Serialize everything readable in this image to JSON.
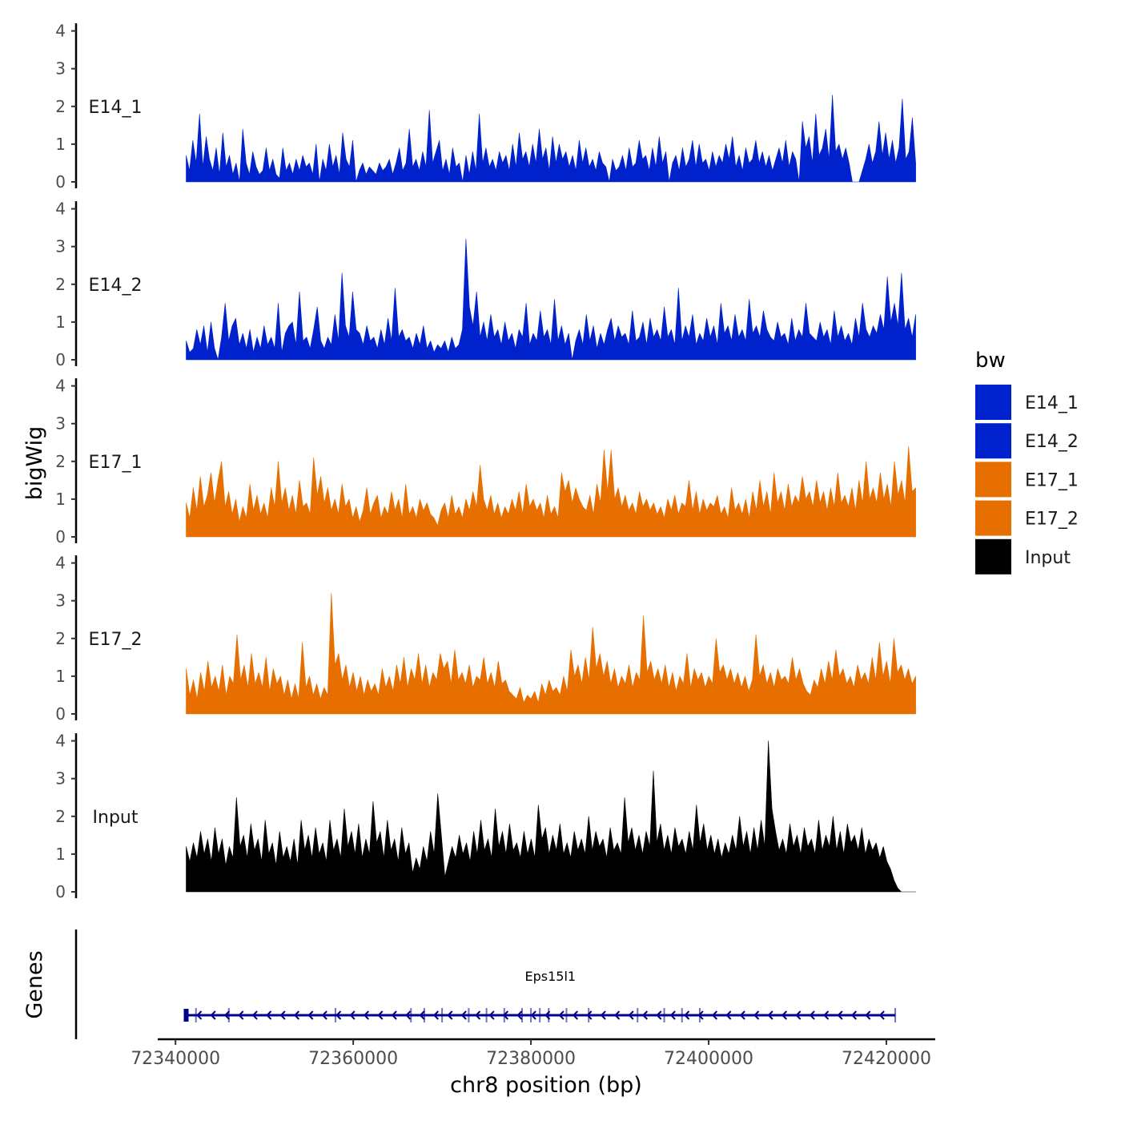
{
  "chart_data": {
    "type": "area",
    "chromosome": "chr8",
    "x_axis": {
      "label": "chr8 position (bp)",
      "range": [
        72338000,
        72425500
      ],
      "ticks": [
        72340000,
        72360000,
        72380000,
        72400000,
        72420000
      ],
      "tick_labels": [
        "72340000",
        "72360000",
        "72380000",
        "72400000",
        "72420000"
      ]
    },
    "y_axis": {
      "label": "bigWig",
      "range": [
        0,
        4.2
      ],
      "ticks": [
        0,
        1,
        2,
        3,
        4
      ],
      "tick_labels": [
        "0",
        "1",
        "2",
        "3",
        "4"
      ]
    },
    "data_start": 72341200,
    "data_end": 72423300,
    "tracks": [
      {
        "name": "E14_1",
        "label": "E14_1",
        "color": "#0022CC",
        "baseline": 0.07,
        "values": [
          0.7,
          0.3,
          1.1,
          0.5,
          1.8,
          0.4,
          1.2,
          0.6,
          0.3,
          0.9,
          0.2,
          1.3,
          0.4,
          0.7,
          0.2,
          0.5,
          0.0,
          1.4,
          0.5,
          0.2,
          0.8,
          0.4,
          0.2,
          0.3,
          0.9,
          0.3,
          0.6,
          0.2,
          0.1,
          0.9,
          0.3,
          0.5,
          0.2,
          0.6,
          0.3,
          0.7,
          0.4,
          0.5,
          0.2,
          1.0,
          0.0,
          0.6,
          0.3,
          1.0,
          0.4,
          0.7,
          0.2,
          1.3,
          0.6,
          0.4,
          1.1,
          0.0,
          0.3,
          0.5,
          0.2,
          0.4,
          0.3,
          0.2,
          0.5,
          0.3,
          0.4,
          0.6,
          0.2,
          0.5,
          0.9,
          0.3,
          0.5,
          1.4,
          0.4,
          0.6,
          0.3,
          0.8,
          0.4,
          1.9,
          0.5,
          0.8,
          1.1,
          0.3,
          0.6,
          0.2,
          0.9,
          0.4,
          0.5,
          0.0,
          0.7,
          0.2,
          0.8,
          0.3,
          1.8,
          0.5,
          0.9,
          0.4,
          0.6,
          0.3,
          0.8,
          0.5,
          0.7,
          0.3,
          1.0,
          0.4,
          1.3,
          0.6,
          0.8,
          0.4,
          1.0,
          0.5,
          1.4,
          0.6,
          0.9,
          0.3,
          1.2,
          0.5,
          1.0,
          0.6,
          0.8,
          0.4,
          0.7,
          0.3,
          1.1,
          0.5,
          0.9,
          0.4,
          0.6,
          0.3,
          0.8,
          0.5,
          0.4,
          0.0,
          0.6,
          0.3,
          0.4,
          0.7,
          0.3,
          0.9,
          0.4,
          0.5,
          1.1,
          0.6,
          0.7,
          0.3,
          0.9,
          0.4,
          1.2,
          0.5,
          0.8,
          0.0,
          0.5,
          0.7,
          0.3,
          0.9,
          0.4,
          0.6,
          1.1,
          0.4,
          1.0,
          0.5,
          0.6,
          0.3,
          0.8,
          0.4,
          0.7,
          0.5,
          1.0,
          0.6,
          1.2,
          0.4,
          0.7,
          0.3,
          0.9,
          0.5,
          0.6,
          1.1,
          0.5,
          0.8,
          0.4,
          0.7,
          0.3,
          0.6,
          0.9,
          0.5,
          1.1,
          0.4,
          0.8,
          0.6,
          0.0,
          1.6,
          0.9,
          1.2,
          0.5,
          1.8,
          0.7,
          0.9,
          1.4,
          0.6,
          2.3,
          0.8,
          1.0,
          0.6,
          0.9,
          0.5,
          0.0,
          0.0,
          0.0,
          0.3,
          0.6,
          1.0,
          0.5,
          0.8,
          1.6,
          0.7,
          1.3,
          0.6,
          1.1,
          0.5,
          0.9,
          2.2,
          0.6,
          0.8,
          1.7,
          0.5
        ]
      },
      {
        "name": "E14_2",
        "label": "E14_2",
        "color": "#0022CC",
        "baseline": 0.07,
        "values": [
          0.5,
          0.2,
          0.3,
          0.8,
          0.4,
          0.9,
          0.2,
          1.0,
          0.3,
          0.0,
          0.6,
          1.5,
          0.5,
          0.9,
          1.1,
          0.4,
          0.7,
          0.3,
          0.8,
          0.2,
          0.6,
          0.3,
          0.9,
          0.4,
          0.6,
          0.3,
          1.5,
          0.2,
          0.7,
          0.9,
          1.0,
          0.4,
          1.8,
          0.5,
          0.6,
          0.3,
          0.8,
          1.4,
          0.5,
          0.3,
          0.6,
          0.4,
          1.2,
          0.5,
          2.3,
          0.9,
          0.6,
          1.8,
          0.8,
          0.7,
          0.4,
          0.9,
          0.5,
          0.6,
          0.3,
          0.8,
          0.4,
          1.1,
          0.5,
          1.9,
          0.6,
          0.8,
          0.5,
          0.6,
          0.3,
          0.7,
          0.4,
          0.9,
          0.3,
          0.5,
          0.2,
          0.4,
          0.3,
          0.5,
          0.2,
          0.6,
          0.3,
          0.4,
          0.8,
          3.2,
          1.4,
          0.9,
          1.8,
          0.6,
          1.0,
          0.5,
          1.2,
          0.6,
          0.8,
          0.4,
          1.0,
          0.5,
          0.7,
          0.3,
          0.8,
          0.6,
          1.5,
          0.4,
          0.7,
          0.5,
          1.3,
          0.6,
          0.8,
          0.4,
          1.6,
          0.5,
          0.9,
          0.4,
          0.7,
          0.0,
          0.5,
          0.8,
          0.4,
          1.2,
          0.5,
          0.9,
          0.3,
          0.7,
          0.4,
          0.8,
          1.1,
          0.5,
          0.9,
          0.6,
          0.7,
          0.4,
          1.3,
          0.5,
          0.6,
          1.0,
          0.4,
          1.1,
          0.6,
          0.8,
          0.5,
          1.4,
          0.6,
          0.8,
          0.4,
          1.9,
          0.5,
          0.9,
          0.6,
          1.2,
          0.4,
          0.7,
          0.5,
          1.1,
          0.6,
          0.9,
          0.4,
          1.5,
          0.7,
          0.9,
          0.5,
          1.2,
          0.6,
          0.8,
          0.5,
          1.6,
          0.7,
          0.9,
          0.6,
          1.3,
          0.8,
          0.6,
          0.5,
          1.0,
          0.6,
          0.7,
          0.4,
          1.1,
          0.5,
          0.8,
          0.6,
          1.5,
          0.7,
          0.6,
          0.5,
          1.0,
          0.6,
          0.8,
          0.4,
          1.3,
          0.6,
          0.9,
          0.5,
          0.7,
          0.4,
          1.1,
          0.6,
          1.5,
          0.8,
          0.6,
          0.9,
          0.7,
          1.2,
          0.8,
          2.2,
          1.0,
          1.5,
          0.9,
          2.3,
          0.8,
          1.1,
          0.6,
          1.2
        ]
      },
      {
        "name": "E17_1",
        "label": "E17_1",
        "color": "#E66F00",
        "baseline": 0.07,
        "values": [
          0.9,
          0.5,
          1.3,
          0.7,
          1.6,
          0.8,
          1.1,
          1.7,
          0.9,
          1.5,
          2.0,
          0.8,
          1.2,
          0.6,
          1.0,
          0.4,
          0.8,
          0.5,
          1.4,
          0.7,
          1.1,
          0.6,
          0.9,
          0.5,
          1.3,
          0.8,
          2.0,
          0.9,
          1.3,
          0.7,
          1.1,
          0.6,
          1.5,
          0.8,
          0.9,
          0.6,
          2.1,
          1.1,
          1.6,
          0.9,
          1.3,
          0.7,
          1.0,
          0.6,
          1.4,
          0.8,
          1.0,
          0.5,
          0.8,
          0.4,
          0.7,
          1.3,
          0.6,
          0.9,
          1.1,
          0.5,
          0.8,
          0.6,
          1.2,
          0.7,
          1.0,
          0.5,
          1.4,
          0.6,
          0.8,
          0.5,
          1.0,
          0.7,
          0.9,
          0.6,
          0.5,
          0.3,
          0.7,
          0.9,
          0.5,
          1.1,
          0.6,
          0.8,
          0.5,
          1.0,
          0.7,
          1.2,
          0.8,
          1.9,
          1.0,
          0.7,
          1.1,
          0.6,
          0.9,
          0.5,
          0.8,
          0.6,
          1.0,
          0.7,
          1.2,
          0.6,
          1.4,
          0.8,
          1.0,
          0.7,
          0.9,
          0.5,
          1.1,
          0.6,
          0.8,
          0.5,
          1.7,
          1.2,
          1.5,
          0.9,
          1.3,
          1.0,
          0.8,
          0.7,
          1.1,
          0.6,
          1.4,
          0.9,
          2.3,
          1.2,
          2.3,
          1.0,
          1.3,
          0.8,
          1.1,
          0.7,
          0.9,
          0.6,
          1.2,
          0.8,
          1.0,
          0.7,
          0.9,
          0.6,
          0.8,
          0.5,
          1.0,
          0.7,
          1.1,
          0.6,
          0.9,
          0.8,
          1.5,
          0.7,
          1.2,
          0.6,
          1.0,
          0.7,
          0.9,
          0.8,
          1.1,
          0.6,
          0.8,
          0.5,
          1.3,
          0.7,
          0.9,
          0.6,
          1.0,
          0.5,
          1.2,
          0.7,
          1.5,
          0.8,
          1.2,
          0.6,
          1.7,
          0.9,
          1.2,
          0.7,
          1.4,
          0.8,
          1.1,
          0.9,
          1.6,
          1.0,
          1.2,
          0.8,
          1.5,
          0.9,
          1.2,
          0.7,
          1.3,
          0.8,
          1.7,
          0.9,
          1.1,
          0.8,
          1.3,
          0.7,
          1.5,
          0.9,
          2.0,
          1.0,
          1.3,
          0.9,
          1.7,
          1.0,
          1.4,
          0.8,
          2.0,
          1.1,
          1.5,
          0.9,
          2.4,
          1.2,
          1.3
        ]
      },
      {
        "name": "E17_2",
        "label": "E17_2",
        "color": "#E66F00",
        "baseline": 0.07,
        "values": [
          1.2,
          0.5,
          0.9,
          0.4,
          1.1,
          0.6,
          1.4,
          0.7,
          1.0,
          0.6,
          1.3,
          0.5,
          1.0,
          0.8,
          2.1,
          0.9,
          1.3,
          0.7,
          1.6,
          0.8,
          1.1,
          0.7,
          1.5,
          0.6,
          1.2,
          0.8,
          1.0,
          0.5,
          0.9,
          0.4,
          0.8,
          0.4,
          1.9,
          0.7,
          1.0,
          0.5,
          0.8,
          0.4,
          0.7,
          0.5,
          3.2,
          1.3,
          1.6,
          0.9,
          1.3,
          0.7,
          1.1,
          0.6,
          1.0,
          0.5,
          0.9,
          0.6,
          0.8,
          0.5,
          1.2,
          0.7,
          1.0,
          0.6,
          1.3,
          0.8,
          1.5,
          0.7,
          1.2,
          0.9,
          1.6,
          0.8,
          1.3,
          0.7,
          1.1,
          0.9,
          1.6,
          1.2,
          1.4,
          0.8,
          1.7,
          0.9,
          1.1,
          0.8,
          1.3,
          0.7,
          1.0,
          0.9,
          1.5,
          0.8,
          1.1,
          0.7,
          1.4,
          0.8,
          0.9,
          0.6,
          0.5,
          0.4,
          0.7,
          0.3,
          0.5,
          0.4,
          0.6,
          0.3,
          0.8,
          0.5,
          0.9,
          0.6,
          0.7,
          0.5,
          1.0,
          0.6,
          1.7,
          1.0,
          1.3,
          0.8,
          1.5,
          0.9,
          2.3,
          1.2,
          1.6,
          1.0,
          1.4,
          0.8,
          1.2,
          0.7,
          1.0,
          0.8,
          1.3,
          0.7,
          1.1,
          0.9,
          2.6,
          1.1,
          1.4,
          0.9,
          1.2,
          0.8,
          1.3,
          0.7,
          1.1,
          0.6,
          1.0,
          0.8,
          1.6,
          0.7,
          1.2,
          0.9,
          1.1,
          0.7,
          1.0,
          0.8,
          2.0,
          1.1,
          1.3,
          0.9,
          1.2,
          0.8,
          1.1,
          0.7,
          1.0,
          0.6,
          0.9,
          2.1,
          1.0,
          1.3,
          0.8,
          1.1,
          0.7,
          1.2,
          0.9,
          1.0,
          0.8,
          1.5,
          0.9,
          1.2,
          0.8,
          0.6,
          0.5,
          0.9,
          0.7,
          1.2,
          0.8,
          1.4,
          0.9,
          1.7,
          1.0,
          1.2,
          0.8,
          1.0,
          0.7,
          1.3,
          0.9,
          1.1,
          0.8,
          1.5,
          0.9,
          1.9,
          1.0,
          1.4,
          0.8,
          2.0,
          1.1,
          1.3,
          0.9,
          1.2,
          0.8,
          1.0
        ]
      },
      {
        "name": "Input",
        "label": "Input",
        "color": "#000000",
        "baseline": 0.2,
        "values": [
          1.2,
          0.8,
          1.3,
          0.9,
          1.6,
          1.0,
          1.4,
          0.8,
          1.7,
          1.0,
          1.4,
          0.7,
          1.2,
          0.9,
          2.5,
          1.2,
          1.5,
          0.9,
          1.8,
          1.1,
          1.4,
          0.8,
          1.9,
          1.0,
          1.3,
          0.7,
          1.6,
          0.9,
          1.2,
          0.8,
          1.4,
          0.7,
          1.9,
          1.1,
          1.5,
          0.9,
          1.7,
          1.0,
          1.3,
          0.8,
          1.9,
          1.1,
          1.4,
          0.9,
          2.2,
          1.2,
          1.6,
          1.0,
          1.8,
          0.9,
          1.4,
          1.0,
          2.4,
          1.3,
          1.6,
          0.9,
          1.9,
          1.1,
          1.4,
          0.8,
          1.7,
          1.0,
          1.3,
          0.5,
          0.9,
          0.6,
          1.2,
          0.8,
          1.6,
          1.0,
          2.6,
          1.5,
          0.4,
          0.8,
          1.2,
          0.9,
          1.5,
          1.0,
          1.3,
          0.8,
          1.6,
          1.0,
          1.9,
          1.1,
          1.4,
          0.9,
          2.2,
          1.2,
          1.6,
          1.0,
          1.8,
          1.1,
          1.3,
          0.9,
          1.6,
          1.0,
          1.4,
          0.9,
          2.3,
          1.4,
          1.7,
          1.0,
          1.5,
          1.1,
          1.8,
          1.0,
          1.3,
          0.9,
          1.6,
          1.1,
          1.4,
          1.0,
          2.0,
          1.1,
          1.6,
          1.2,
          1.4,
          0.9,
          1.7,
          1.1,
          1.3,
          1.0,
          2.5,
          1.3,
          1.7,
          1.1,
          1.5,
          1.0,
          1.6,
          1.2,
          3.2,
          1.3,
          1.8,
          1.1,
          1.5,
          1.0,
          1.7,
          1.2,
          1.4,
          1.0,
          1.6,
          1.1,
          2.3,
          1.3,
          1.8,
          1.1,
          1.5,
          1.0,
          1.4,
          0.9,
          1.3,
          1.0,
          1.5,
          1.1,
          2.0,
          1.2,
          1.6,
          1.0,
          1.7,
          1.1,
          1.9,
          1.2,
          4.0,
          2.2,
          1.6,
          1.1,
          1.4,
          1.0,
          1.8,
          1.2,
          1.5,
          1.0,
          1.7,
          1.2,
          1.4,
          1.0,
          1.9,
          1.1,
          1.5,
          1.2,
          2.0,
          1.1,
          1.6,
          1.0,
          1.8,
          1.3,
          1.5,
          1.1,
          1.7,
          1.0,
          1.4,
          1.1,
          1.3,
          0.9,
          1.2,
          0.8,
          0.6,
          0.3,
          0.1,
          0.0,
          0.0,
          0.0,
          0.0,
          0.0
        ]
      }
    ],
    "legend": {
      "title": "bw",
      "placement": "right",
      "items": [
        {
          "label": "E14_1",
          "color": "#0022CC"
        },
        {
          "label": "E14_2",
          "color": "#0022CC"
        },
        {
          "label": "E17_1",
          "color": "#E66F00"
        },
        {
          "label": "E17_2",
          "color": "#E66F00"
        },
        {
          "label": "Input",
          "color": "#000000"
        }
      ]
    },
    "genes_panel": {
      "axis_label": "Genes",
      "gene": {
        "name": "Eps15l1",
        "start": 72341200,
        "end": 72421000,
        "strand": "-",
        "color": "#00008B",
        "exons": [
          72341200,
          72342300,
          72346000,
          72358000,
          72366500,
          72368000,
          72370000,
          72373000,
          72375000,
          72377000,
          72379000,
          72380000,
          72381000,
          72382000,
          72384000,
          72386500,
          72392000,
          72395000,
          72397000,
          72399000,
          72421000
        ]
      }
    }
  }
}
